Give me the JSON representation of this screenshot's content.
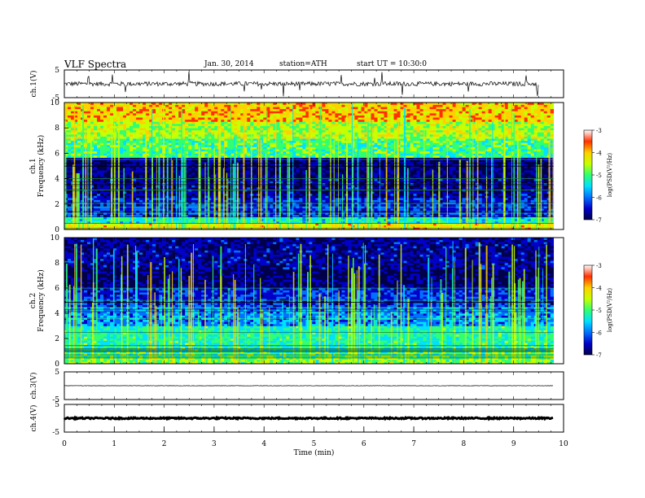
{
  "header": {
    "title": "VLF Spectra",
    "date": "Jan. 30, 2014",
    "station": "station=ATH",
    "start_ut": "start UT =  10:30:0"
  },
  "colors": {
    "colormap": [
      "#00004a",
      "#0000c8",
      "#0070ff",
      "#00e0ff",
      "#30ff70",
      "#c8ff00",
      "#ffd000",
      "#ff3000",
      "#c00000"
    ],
    "waveform": "#000000",
    "frame": "#000000"
  },
  "chart_data": [
    {
      "type": "line",
      "title": "VLF Spectra",
      "ylabel": "ch.1(V)",
      "xlabel": "",
      "xlim": [
        0,
        10
      ],
      "ylim": [
        -5,
        5
      ],
      "yticks": [
        "5",
        "-5"
      ],
      "series": [
        {
          "values": [
            0,
            -0.4,
            0.3,
            -0.6,
            0.5,
            -0.3,
            0.2,
            -0.5,
            0.4,
            -0.2
          ],
          "x": [
            0.5,
            1.5,
            2.5,
            3.5,
            4.5,
            5.5,
            6.5,
            7.5,
            8.5,
            9.5
          ]
        }
      ],
      "notes": "noisy waveform around 0 V with spikes up to about +4/-4 V, 0 to 9.8 min"
    },
    {
      "type": "heatmap",
      "ylabel": "ch.1\nFrequency (kHz)",
      "ylim": [
        0,
        10
      ],
      "xlim": [
        0,
        10
      ],
      "yticks": [
        "0",
        "2",
        "4",
        "6",
        "8",
        "10"
      ],
      "colorbar": {
        "label": "log(PSD(V²/Hz)",
        "range": [
          -7,
          -3
        ],
        "ticks": [
          "-3",
          "-4",
          "-5",
          "-6",
          "-7"
        ]
      },
      "data_end_min": 9.8,
      "bands": [
        {
          "f": [
            0,
            0.5
          ],
          "log_psd": -4.3
        },
        {
          "f": [
            0.5,
            1
          ],
          "log_psd": -5.3
        },
        {
          "f": [
            1,
            2.5
          ],
          "log_psd": -6.2
        },
        {
          "f": [
            2.5,
            4
          ],
          "log_psd": -6.5
        },
        {
          "f": [
            4,
            5.7
          ],
          "log_psd": -6.6
        },
        {
          "f": [
            5.7,
            7.2
          ],
          "log_psd": -5.0
        },
        {
          "f": [
            7.2,
            8.5
          ],
          "log_psd": -4.6
        },
        {
          "f": [
            8.5,
            10
          ],
          "log_psd": -4.1
        }
      ],
      "notes": "vertical impulsive sferic streaks across all frequencies"
    },
    {
      "type": "heatmap",
      "ylabel": "ch.2\nFrequency (kHz)",
      "ylim": [
        0,
        10
      ],
      "xlim": [
        0,
        10
      ],
      "yticks": [
        "0",
        "2",
        "4",
        "6",
        "8",
        "10"
      ],
      "colorbar": {
        "label": "log(PSD(V²/Hz)",
        "range": [
          -7,
          -3
        ],
        "ticks": [
          "-3",
          "-4",
          "-5",
          "-6",
          "-7"
        ]
      },
      "data_end_min": 9.8,
      "bands": [
        {
          "f": [
            0,
            0.5
          ],
          "log_psd": -4.8
        },
        {
          "f": [
            0.5,
            1
          ],
          "log_psd": -5.0
        },
        {
          "f": [
            1,
            3
          ],
          "log_psd": -5.2
        },
        {
          "f": [
            3,
            4.5
          ],
          "log_psd": -5.8
        },
        {
          "f": [
            4.5,
            6
          ],
          "log_psd": -6.2
        },
        {
          "f": [
            6,
            7.5
          ],
          "log_psd": -6.7
        },
        {
          "f": [
            7.5,
            10
          ],
          "log_psd": -6.5
        }
      ],
      "notes": "vertical impulsive sferic streaks, weaker high-frequency background"
    },
    {
      "type": "line",
      "ylabel": "ch.3(V)",
      "xlim": [
        0,
        10
      ],
      "ylim": [
        -5,
        5
      ],
      "yticks": [
        "5",
        "-5"
      ],
      "series": [
        {
          "values": [
            0,
            0
          ],
          "x": [
            0,
            9.8
          ]
        }
      ]
    },
    {
      "type": "line",
      "ylabel": "ch.4(V)",
      "xlabel": "Time (min)",
      "xlim": [
        0,
        10
      ],
      "ylim": [
        -5,
        5
      ],
      "yticks": [
        "5",
        "-5"
      ],
      "xticks": [
        "0",
        "1",
        "2",
        "3",
        "4",
        "5",
        "6",
        "7",
        "8",
        "9",
        "10"
      ],
      "series": [
        {
          "values": [
            0,
            0
          ],
          "x": [
            0,
            9.8
          ]
        }
      ]
    }
  ]
}
